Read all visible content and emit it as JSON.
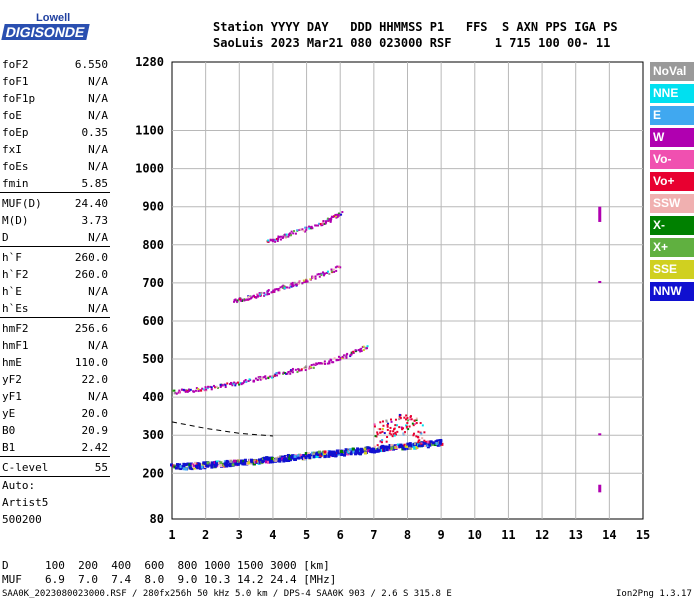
{
  "logo": {
    "top": "Lowell",
    "main": "DIGISONDE"
  },
  "header": {
    "line1": "Station YYYY DAY   DDD HHMMSS P1   FFS  S AXN PPS IGA PS",
    "line2": "SaoLuis 2023 Mar21 080 023000 RSF      1 715 100 00- 11"
  },
  "params": [
    {
      "k": "foF2",
      "v": "6.550"
    },
    {
      "k": "foF1",
      "v": "N/A"
    },
    {
      "k": "foF1p",
      "v": "N/A"
    },
    {
      "k": "foE",
      "v": "N/A"
    },
    {
      "k": "foEp",
      "v": "0.35"
    },
    {
      "k": "fxI",
      "v": "N/A"
    },
    {
      "k": "foEs",
      "v": "N/A"
    },
    {
      "k": "fmin",
      "v": "5.85"
    },
    {
      "k": "MUF(D)",
      "v": "24.40"
    },
    {
      "k": "M(D)",
      "v": "3.73"
    },
    {
      "k": "D",
      "v": "N/A"
    },
    {
      "k": "h`F",
      "v": "260.0"
    },
    {
      "k": "h`F2",
      "v": "260.0"
    },
    {
      "k": "h`E",
      "v": "N/A"
    },
    {
      "k": "h`Es",
      "v": "N/A"
    },
    {
      "k": "hmF2",
      "v": "256.6"
    },
    {
      "k": "hmF1",
      "v": "N/A"
    },
    {
      "k": "hmE",
      "v": "110.0"
    },
    {
      "k": "yF2",
      "v": "22.0"
    },
    {
      "k": "yF1",
      "v": "N/A"
    },
    {
      "k": "yE",
      "v": "20.0"
    },
    {
      "k": "B0",
      "v": "20.9"
    },
    {
      "k": "B1",
      "v": "2.42"
    },
    {
      "k": "C-level",
      "v": "55"
    }
  ],
  "misc": {
    "auto": "Auto:",
    "artist": "Artist5",
    "code": "500200"
  },
  "legend": [
    {
      "label": "NoVal",
      "color": "#9a9a9a"
    },
    {
      "label": "NNE",
      "color": "#00e0f0"
    },
    {
      "label": "E",
      "color": "#40a8f0"
    },
    {
      "label": "W",
      "color": "#b000b0"
    },
    {
      "label": "Vo-",
      "color": "#f050b0"
    },
    {
      "label": "Vo+",
      "color": "#e80030"
    },
    {
      "label": "SSW",
      "color": "#f0b0b0"
    },
    {
      "label": "X-",
      "color": "#008000"
    },
    {
      "label": "X+",
      "color": "#60b040"
    },
    {
      "label": "SSE",
      "color": "#d0d020"
    },
    {
      "label": "NNW",
      "color": "#1010d0"
    }
  ],
  "bottom": {
    "d_label": "D",
    "d_values": "100  200  400  600  800 1000 1500 3000 [km]",
    "muf_label": "MUF",
    "muf_values": "6.9  7.0  7.4  8.0  9.0 10.3 14.2 24.4 [MHz]"
  },
  "footer": {
    "left": "SAA0K_2023080023000.RSF / 280fx256h 50 kHz 5.0 km / DPS-4 SAA0K 903 / 2.6 S 315.8 E",
    "right": "Ion2Png 1.3.17"
  },
  "chart_data": {
    "type": "scatter",
    "title": "",
    "xlabel": "",
    "ylabel": "",
    "xlim": [
      1,
      15
    ],
    "ylim": [
      80,
      1280
    ],
    "x_ticks": [
      "1",
      "2",
      "3",
      "4",
      "5",
      "6",
      "7",
      "8",
      "9",
      "10",
      "11",
      "12",
      "13",
      "14",
      "15"
    ],
    "y_ticks": [
      "80",
      "200",
      "300",
      "400",
      "500",
      "600",
      "700",
      "800",
      "900",
      "1000",
      "1100",
      "1280"
    ],
    "grid": true,
    "trace_series": [
      {
        "name": "F trace 1st hop",
        "color": "#1010d0",
        "points": [
          [
            1.0,
            220
          ],
          [
            2.0,
            225
          ],
          [
            3.0,
            232
          ],
          [
            4.0,
            240
          ],
          [
            5.0,
            250
          ],
          [
            6.0,
            258
          ],
          [
            7.0,
            266
          ],
          [
            8.0,
            275
          ],
          [
            9.0,
            285
          ]
        ]
      },
      {
        "name": "F trace 2nd hop",
        "color": "#b000b0",
        "points": [
          [
            1.0,
            415
          ],
          [
            2.0,
            425
          ],
          [
            3.0,
            440
          ],
          [
            4.0,
            460
          ],
          [
            5.0,
            480
          ],
          [
            6.0,
            505
          ],
          [
            6.8,
            535
          ]
        ]
      },
      {
        "name": "F trace 3rd hop",
        "color": "#b000b0",
        "points": [
          [
            2.8,
            655
          ],
          [
            3.5,
            668
          ],
          [
            4.3,
            690
          ],
          [
            5.0,
            710
          ],
          [
            6.0,
            745
          ]
        ]
      },
      {
        "name": "F trace 4th hop",
        "color": "#b000b0",
        "points": [
          [
            3.8,
            810
          ],
          [
            4.5,
            830
          ],
          [
            5.5,
            860
          ],
          [
            6.0,
            885
          ]
        ]
      },
      {
        "name": "Spread F",
        "color": "#e80030",
        "points": [
          [
            7.0,
            300
          ],
          [
            7.5,
            320
          ],
          [
            8.0,
            340
          ],
          [
            8.5,
            300
          ]
        ]
      }
    ],
    "model_curve": {
      "style": "dashed",
      "points": [
        [
          1.0,
          335
        ],
        [
          2.0,
          318
        ],
        [
          3.0,
          305
        ],
        [
          4.0,
          298
        ]
      ]
    },
    "interference_columns": [
      {
        "x": 13.7,
        "y": [
          [
            860,
            900
          ],
          [
            700,
            705
          ],
          [
            300,
            305
          ],
          [
            150,
            170
          ]
        ]
      }
    ]
  }
}
